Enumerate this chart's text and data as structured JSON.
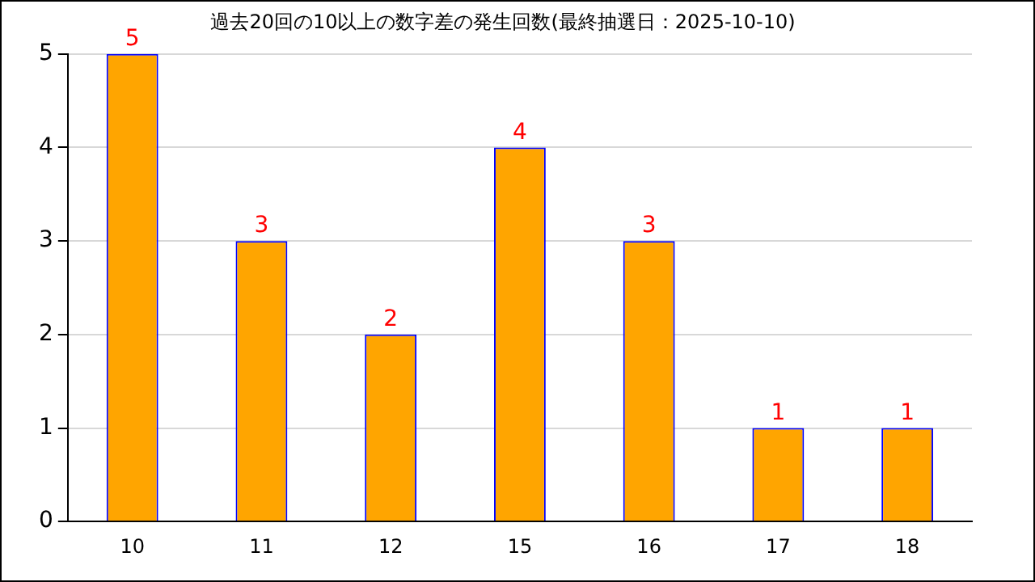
{
  "chart_data": {
    "type": "bar",
    "title": "過去20回の10以上の数字差の発生回数(最終抽選日：2025-10-10)",
    "categories": [
      "10",
      "11",
      "12",
      "15",
      "16",
      "17",
      "18"
    ],
    "values": [
      5,
      3,
      2,
      4,
      3,
      1,
      1
    ],
    "color": "#ffa500",
    "ylim": [
      0,
      5
    ],
    "yticks": [
      0,
      1,
      2,
      3,
      4,
      5
    ],
    "grid": "y",
    "data_labels": true,
    "legend": false
  }
}
